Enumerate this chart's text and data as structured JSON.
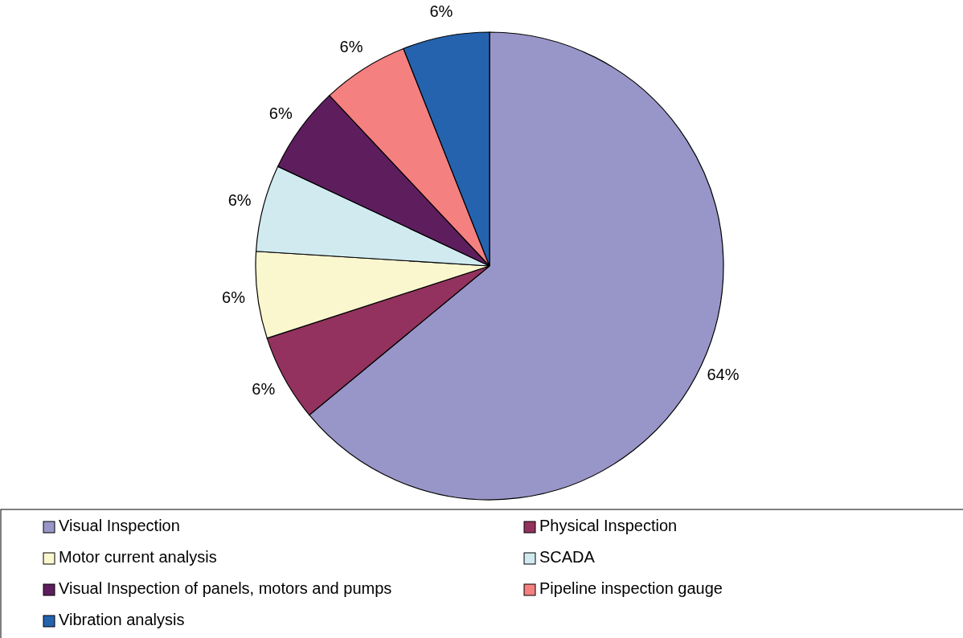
{
  "chart_data": {
    "type": "pie",
    "categories": [
      "Visual Inspection",
      "Physical Inspection",
      "Motor current analysis",
      "SCADA",
      "Visual Inspection of panels, motors and pumps",
      "Pipeline inspection gauge",
      "Vibration analysis"
    ],
    "values": [
      64,
      6,
      6,
      6,
      6,
      6,
      6
    ],
    "value_labels": [
      "64%",
      "6%",
      "6%",
      "6%",
      "6%",
      "6%",
      "6%"
    ],
    "colors": [
      "#9896c8",
      "#93325e",
      "#faf7cf",
      "#d0eaf0",
      "#5e1e5e",
      "#f48080",
      "#2563ae"
    ],
    "legend": "bottom"
  }
}
